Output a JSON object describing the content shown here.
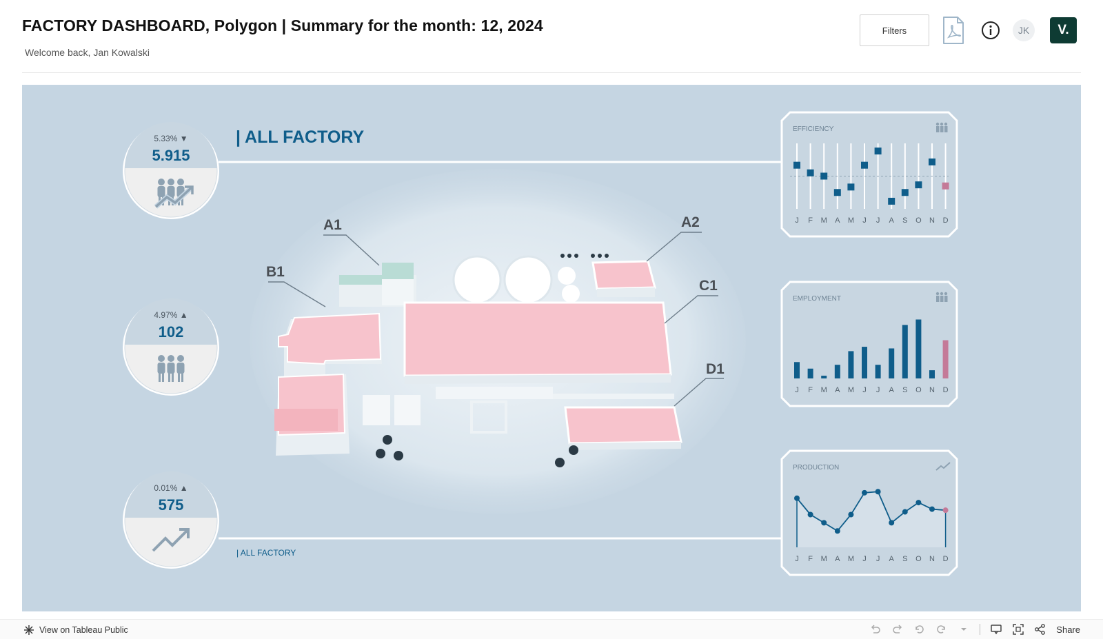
{
  "header": {
    "title": "FACTORY DASHBOARD, Polygon | Summary for the month: 12, 2024",
    "subtitle": "Welcome back, Jan Kowalski",
    "filters_label": "Filters",
    "avatar_initials": "JK",
    "brand_label": "V.",
    "brand_color": "#0e3b33"
  },
  "dashboard": {
    "section_title": "| ALL FACTORY",
    "footer_label": "| ALL FACTORY",
    "accent": "#0f5d8a",
    "highlight": "#c47a98",
    "kpis": [
      {
        "name": "efficiency",
        "change": "5.33%",
        "direction": "▼",
        "value": "5.915",
        "icon": "people-growth-icon"
      },
      {
        "name": "employment",
        "change": "4.97%",
        "direction": "▲",
        "value": "102",
        "icon": "people-icon"
      },
      {
        "name": "production",
        "change": "0.01%",
        "direction": "▲",
        "value": "575",
        "icon": "trend-up-icon"
      }
    ],
    "buildings": [
      "A1",
      "A2",
      "B1",
      "C1",
      "D1"
    ]
  },
  "chart_data": [
    {
      "type": "scatter",
      "title": "EFFICIENCY",
      "categories": [
        "J",
        "F",
        "M",
        "A",
        "M",
        "J",
        "J",
        "A",
        "S",
        "O",
        "N",
        "D"
      ],
      "values": [
        5.85,
        5.78,
        5.75,
        5.6,
        5.65,
        5.85,
        5.98,
        5.52,
        5.6,
        5.67,
        5.88,
        5.66
      ],
      "reference_line": 5.75,
      "ylim": [
        5.45,
        6.05
      ]
    },
    {
      "type": "bar",
      "title": "EMPLOYMENT",
      "categories": [
        "J",
        "F",
        "M",
        "A",
        "M",
        "J",
        "J",
        "A",
        "S",
        "O",
        "N",
        "D"
      ],
      "values": [
        30,
        18,
        5,
        25,
        50,
        58,
        25,
        55,
        98,
        108,
        15,
        70
      ],
      "ylim": [
        0,
        120
      ]
    },
    {
      "type": "area",
      "title": "PRODUCTION",
      "categories": [
        "J",
        "F",
        "M",
        "A",
        "M",
        "J",
        "J",
        "A",
        "S",
        "O",
        "N",
        "D"
      ],
      "values": [
        600,
        570,
        555,
        540,
        570,
        610,
        612,
        555,
        575,
        592,
        580,
        578
      ],
      "ylim": [
        510,
        630
      ]
    }
  ],
  "footer": {
    "view_label": "View on Tableau Public",
    "share_label": "Share"
  }
}
